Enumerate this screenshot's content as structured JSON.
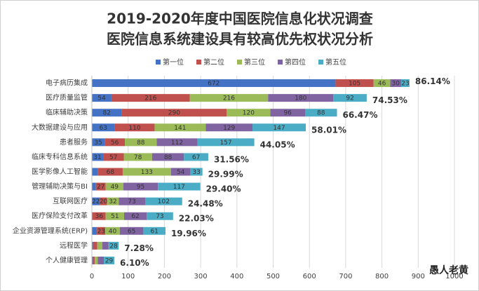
{
  "chart_data": {
    "type": "stacked-barh",
    "title": "2019-2020年度中国医院信息化状况调查",
    "subtitle": "医院信息系统建设具有较高优先权状况分析",
    "categories": [
      "电子病历集成",
      "医疗质量监管",
      "临床辅助决策",
      "大数据建设与应用",
      "患者服务",
      "临床专科信息系统",
      "医学影像人工智能",
      "管理辅助决策与BI",
      "互联网医疗",
      "医疗保险支付改革",
      "企业资源管理系统(ERP)",
      "远程医学",
      "个人健康管理"
    ],
    "series": [
      {
        "name": "第一位",
        "color": "#4472c4",
        "values": [
          672,
          54,
          82,
          63,
          35,
          31,
          17,
          11,
          22,
          2,
          14,
          3,
          3
        ]
      },
      {
        "name": "第二位",
        "color": "#c0504d",
        "values": [
          105,
          216,
          290,
          110,
          56,
          57,
          68,
          27,
          20,
          36,
          23,
          12,
          5
        ]
      },
      {
        "name": "第三位",
        "color": "#9bbb59",
        "values": [
          46,
          216,
          120,
          141,
          88,
          78,
          133,
          49,
          32,
          51,
          40,
          14,
          8
        ]
      },
      {
        "name": "第四位",
        "color": "#8064a2",
        "values": [
          30,
          180,
          96,
          129,
          112,
          88,
          54,
          95,
          73,
          62,
          65,
          17,
          17
        ]
      },
      {
        "name": "第五位",
        "color": "#4bacc6",
        "values": [
          23,
          92,
          88,
          147,
          157,
          67,
          33,
          117,
          102,
          73,
          61,
          28,
          29
        ]
      }
    ],
    "annotations": [
      "86.14%",
      "74.53%",
      "66.47%",
      "58.01%",
      "44.05%",
      "31.56%",
      "29.99%",
      "29.40%",
      "24.48%",
      "22.03%",
      "19.96%",
      "7.28%",
      "6.10%"
    ],
    "xlim": [
      0,
      1000
    ],
    "xticks": [
      0,
      100,
      200,
      300,
      400,
      500,
      600,
      700,
      800,
      900,
      1000
    ],
    "grid": true,
    "legend": "top",
    "watermark": "愚人老黄"
  }
}
